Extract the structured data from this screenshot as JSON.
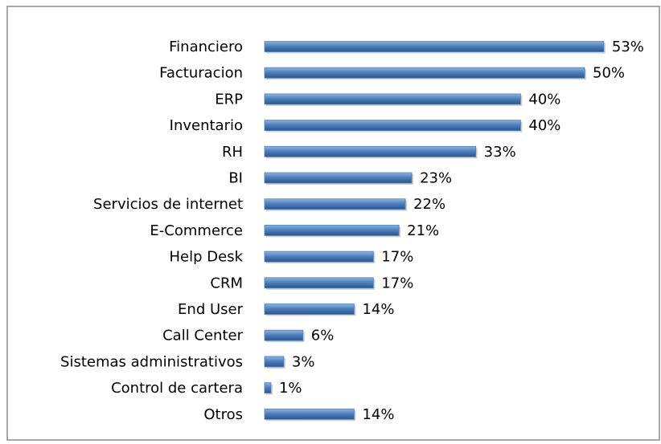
{
  "chart_data": {
    "type": "bar",
    "orientation": "horizontal",
    "color": "#4f81bd",
    "categories": [
      "Financiero",
      "Facturacion",
      "ERP",
      "Inventario",
      "RH",
      "BI",
      "Servicios de internet",
      "E-Commerce",
      "Help Desk",
      "CRM",
      "End User",
      "Call Center",
      "Sistemas administrativos",
      "Control de cartera",
      "Otros"
    ],
    "values": [
      53,
      50,
      40,
      40,
      33,
      23,
      22,
      21,
      17,
      17,
      14,
      6,
      3,
      1,
      14
    ],
    "value_labels": [
      "53%",
      "50%",
      "40%",
      "40%",
      "33%",
      "23%",
      "22%",
      "21%",
      "17%",
      "17%",
      "14%",
      "6%",
      "3%",
      "1%",
      "14%"
    ]
  }
}
